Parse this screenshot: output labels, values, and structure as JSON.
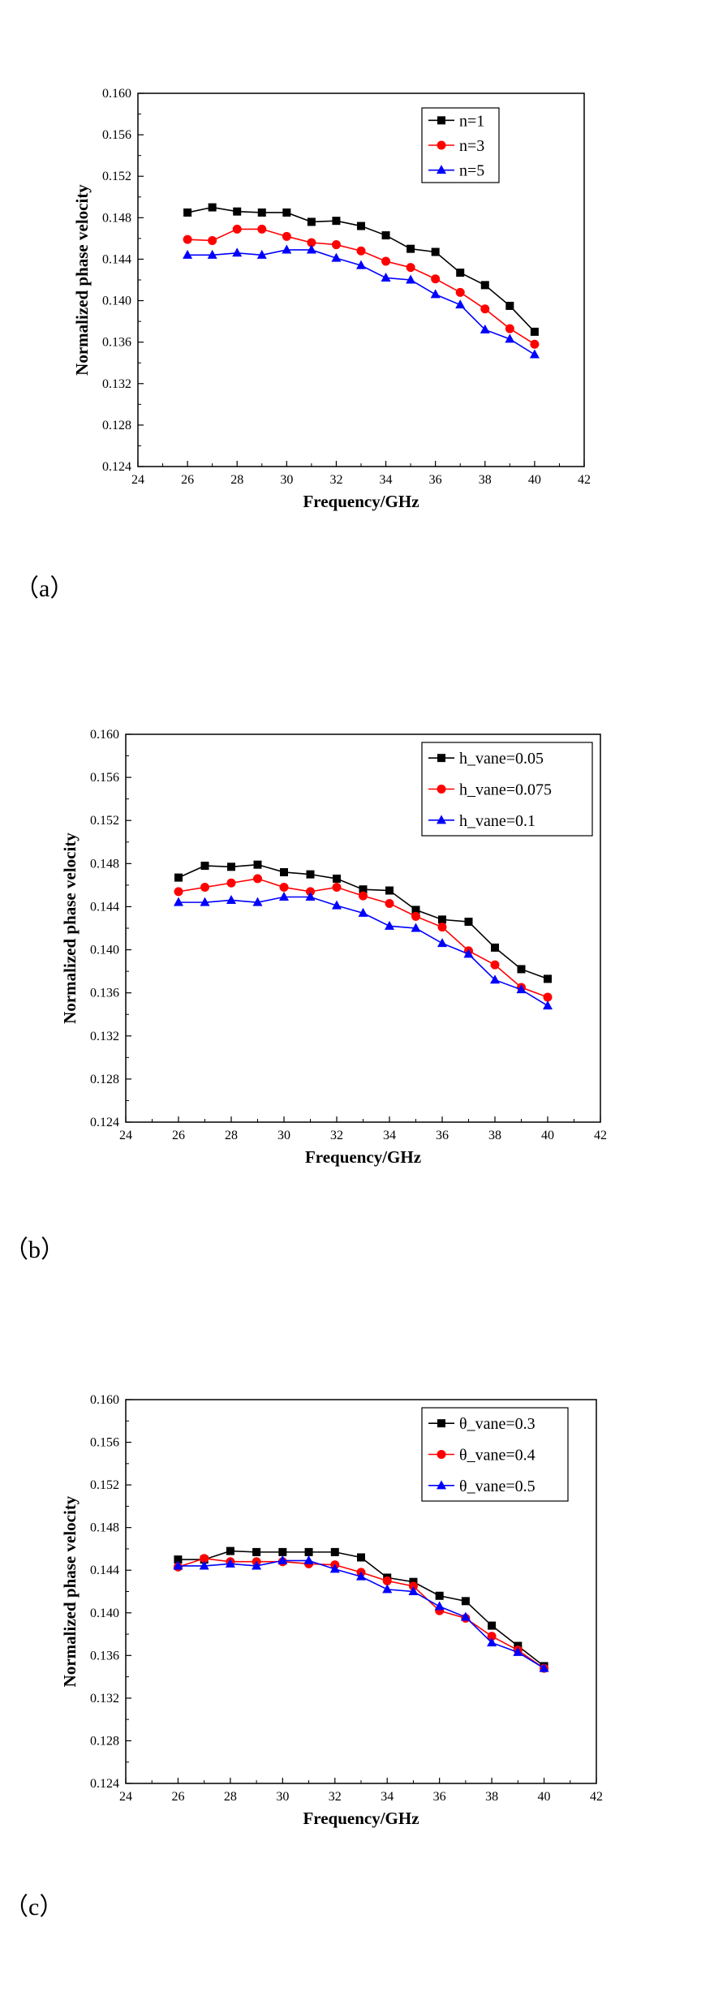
{
  "chart_data": [
    {
      "type": "line",
      "panel_label": "（a）",
      "xlabel": "Frequency/GHz",
      "ylabel": "Normalized phase velocity",
      "xlim": [
        24,
        42
      ],
      "ylim": [
        0.124,
        0.16
      ],
      "xticks": [
        24,
        26,
        28,
        30,
        32,
        34,
        36,
        38,
        40,
        42
      ],
      "yticks": [
        "0.124",
        "0.128",
        "0.132",
        "0.136",
        "0.140",
        "0.144",
        "0.148",
        "0.152",
        "0.156",
        "0.160"
      ],
      "legend_position": "top-right",
      "x": [
        26,
        27,
        28,
        29,
        30,
        31,
        32,
        33,
        34,
        35,
        36,
        37,
        38,
        39,
        40
      ],
      "series": [
        {
          "name": "n=1",
          "color": "#000000",
          "marker": "square",
          "values": [
            0.1485,
            0.149,
            0.1486,
            0.1485,
            0.1485,
            0.1476,
            0.1477,
            0.1472,
            0.1463,
            0.145,
            0.1447,
            0.1427,
            0.1415,
            0.1395,
            0.137
          ]
        },
        {
          "name": "n=3",
          "color": "#ff0000",
          "marker": "circle",
          "values": [
            0.1459,
            0.1458,
            0.1469,
            0.1469,
            0.1462,
            0.1456,
            0.1454,
            0.1448,
            0.1438,
            0.1432,
            0.1421,
            0.1408,
            0.1392,
            0.1373,
            0.1358
          ]
        },
        {
          "name": "n=5",
          "color": "#0000ff",
          "marker": "triangle",
          "values": [
            0.1444,
            0.1444,
            0.1446,
            0.1444,
            0.1449,
            0.1449,
            0.1441,
            0.1434,
            0.1422,
            0.142,
            0.1406,
            0.1396,
            0.1372,
            0.1363,
            0.1348
          ]
        }
      ]
    },
    {
      "type": "line",
      "panel_label": "（b）",
      "xlabel": "Frequency/GHz",
      "ylabel": "Normalized phase velocity",
      "xlim": [
        24,
        42
      ],
      "ylim": [
        0.124,
        0.16
      ],
      "xticks": [
        24,
        26,
        28,
        30,
        32,
        34,
        36,
        38,
        40,
        42
      ],
      "yticks": [
        "0.124",
        "0.128",
        "0.132",
        "0.136",
        "0.140",
        "0.144",
        "0.148",
        "0.152",
        "0.156",
        "0.160"
      ],
      "legend_position": "top-right",
      "x": [
        26,
        27,
        28,
        29,
        30,
        31,
        32,
        33,
        34,
        35,
        36,
        37,
        38,
        39,
        40
      ],
      "series": [
        {
          "name": "h_vane=0.05",
          "color": "#000000",
          "marker": "square",
          "values": [
            0.1467,
            0.1478,
            0.1477,
            0.1479,
            0.1472,
            0.147,
            0.1466,
            0.1456,
            0.1455,
            0.1437,
            0.1428,
            0.1426,
            0.1402,
            0.1382,
            0.1373
          ]
        },
        {
          "name": "h_vane=0.075",
          "color": "#ff0000",
          "marker": "circle",
          "values": [
            0.1454,
            0.1458,
            0.1462,
            0.1466,
            0.1458,
            0.1454,
            0.1458,
            0.145,
            0.1443,
            0.1431,
            0.1421,
            0.1399,
            0.1386,
            0.1365,
            0.1356
          ]
        },
        {
          "name": "h_vane=0.1",
          "color": "#0000ff",
          "marker": "triangle",
          "values": [
            0.1444,
            0.1444,
            0.1446,
            0.1444,
            0.1449,
            0.1449,
            0.1441,
            0.1434,
            0.1422,
            0.142,
            0.1406,
            0.1396,
            0.1372,
            0.1363,
            0.1348
          ]
        }
      ]
    },
    {
      "type": "line",
      "panel_label": "（c）",
      "xlabel": "Frequency/GHz",
      "ylabel": "Normalized phase velocity",
      "xlim": [
        24,
        42
      ],
      "ylim": [
        0.124,
        0.16
      ],
      "xticks": [
        24,
        26,
        28,
        30,
        32,
        34,
        36,
        38,
        40,
        42
      ],
      "yticks": [
        "0.124",
        "0.128",
        "0.132",
        "0.136",
        "0.140",
        "0.144",
        "0.148",
        "0.152",
        "0.156",
        "0.160"
      ],
      "legend_position": "top-right",
      "x": [
        26,
        27,
        28,
        29,
        30,
        31,
        32,
        33,
        34,
        35,
        36,
        37,
        38,
        39,
        40
      ],
      "series": [
        {
          "name": "θ_vane=0.3",
          "color": "#000000",
          "marker": "square",
          "values": [
            0.145,
            0.145,
            0.1458,
            0.1457,
            0.1457,
            0.1457,
            0.1457,
            0.1452,
            0.1433,
            0.1429,
            0.1416,
            0.1411,
            0.1388,
            0.1369,
            0.135
          ]
        },
        {
          "name": "θ_vane=0.4",
          "color": "#ff0000",
          "marker": "circle",
          "values": [
            0.1443,
            0.1451,
            0.1448,
            0.1448,
            0.1448,
            0.1446,
            0.1445,
            0.1438,
            0.143,
            0.1425,
            0.1402,
            0.1395,
            0.1378,
            0.1365,
            0.1348
          ]
        },
        {
          "name": "θ_vane=0.5",
          "color": "#0000ff",
          "marker": "triangle",
          "values": [
            0.1444,
            0.1444,
            0.1446,
            0.1444,
            0.1449,
            0.1449,
            0.1441,
            0.1434,
            0.1422,
            0.142,
            0.1406,
            0.1396,
            0.1372,
            0.1363,
            0.1348
          ]
        }
      ]
    }
  ]
}
